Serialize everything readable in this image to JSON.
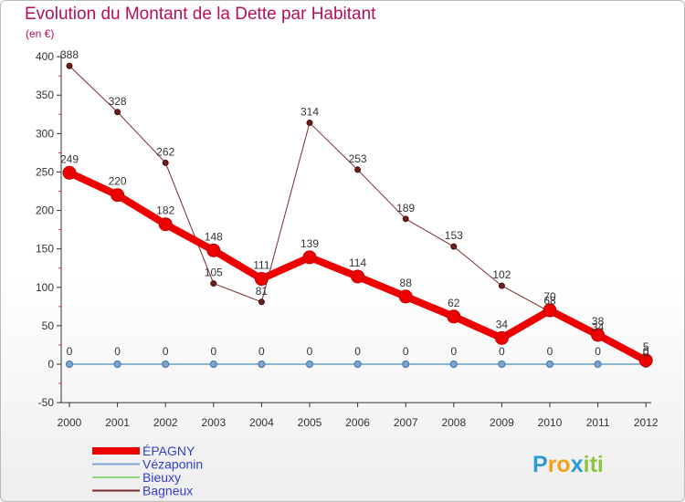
{
  "header": {
    "title": "Evolution du Montant de la Dette par Habitant",
    "unit": "(en €)"
  },
  "chart_data": {
    "type": "line",
    "title": "Evolution du Montant de la Dette par Habitant",
    "ylabel": "(en €)",
    "xlabel": "",
    "ylim": [
      -50,
      400
    ],
    "yticks": [
      -50,
      0,
      50,
      100,
      150,
      200,
      250,
      300,
      350,
      400
    ],
    "x": [
      "2000",
      "2001",
      "2002",
      "2003",
      "2004",
      "2005",
      "2006",
      "2007",
      "2008",
      "2009",
      "2010",
      "2011",
      "2012"
    ],
    "series": [
      {
        "name": "ÉPAGNY",
        "color": "#ee0000",
        "values": [
          249,
          220,
          182,
          148,
          111,
          139,
          114,
          88,
          62,
          34,
          70,
          38,
          5
        ]
      },
      {
        "name": "Vézaponin",
        "color": "#7aa4d2",
        "values": [
          0,
          0,
          0,
          0,
          0,
          0,
          0,
          0,
          0,
          0,
          0,
          0,
          0
        ]
      },
      {
        "name": "Bieuxy",
        "color": "#90da7a",
        "values": [
          0,
          0,
          0,
          0,
          0,
          0,
          0,
          0,
          0,
          0,
          0,
          0,
          0
        ]
      },
      {
        "name": "Bagneux",
        "color": "#7a2c2c",
        "values": [
          388,
          328,
          262,
          105,
          81,
          314,
          253,
          189,
          153,
          102,
          68,
          34,
          0
        ]
      }
    ]
  },
  "brand": {
    "letters": [
      "P",
      "r",
      "o",
      "x",
      "i",
      "t",
      "i"
    ],
    "colors": [
      "#2e9ad6",
      "#f5a21a",
      "#f5a21a",
      "#2e9ad6",
      "#8cc63e",
      "#8cc63e",
      "#8cc63e"
    ]
  }
}
